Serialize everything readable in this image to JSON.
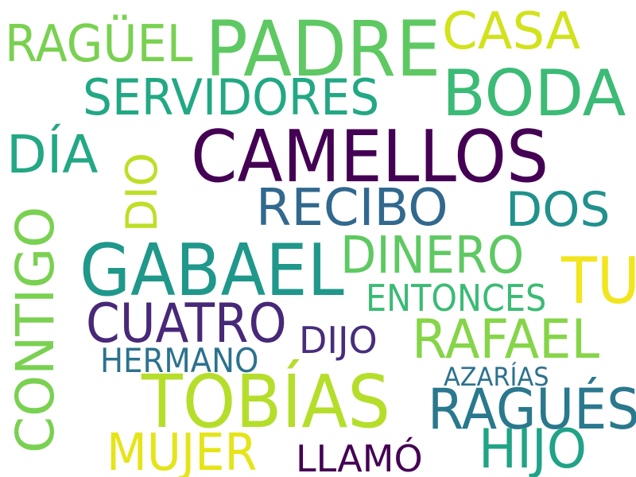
{
  "words": [
    {
      "text": "PADRE",
      "color": "#5ec962"
    },
    {
      "text": "CASA",
      "color": "#d2e21b"
    },
    {
      "text": "RAGÜEL",
      "color": "#7ad151"
    },
    {
      "text": "BODA",
      "color": "#3bbb75"
    },
    {
      "text": "SERVIDORES",
      "color": "#22a884"
    },
    {
      "text": "DÍA",
      "color": "#22a884"
    },
    {
      "text": "DIO",
      "color": "#bddf26"
    },
    {
      "text": "CAMELLOS",
      "color": "#440154"
    },
    {
      "text": "RECIBO",
      "color": "#31688e"
    },
    {
      "text": "DOS",
      "color": "#21918c"
    },
    {
      "text": "CONTIGO",
      "color": "#7ad151"
    },
    {
      "text": "GABAEL",
      "color": "#1f988b"
    },
    {
      "text": "DINERO",
      "color": "#5ec962"
    },
    {
      "text": "TU",
      "color": "#f1e51d"
    },
    {
      "text": "ENTONCES",
      "color": "#3bbb75"
    },
    {
      "text": "CUATRO",
      "color": "#482878"
    },
    {
      "text": "DIJO",
      "color": "#472d7b"
    },
    {
      "text": "RAFAEL",
      "color": "#86d549"
    },
    {
      "text": "HERMANO",
      "color": "#2c728e"
    },
    {
      "text": "AZARÍAS",
      "color": "#2c728e"
    },
    {
      "text": "TOBÍAS",
      "color": "#b5de2b"
    },
    {
      "text": "RAGUÉS",
      "color": "#2a788e"
    },
    {
      "text": "MUJER",
      "color": "#e5e419"
    },
    {
      "text": "LLAMÓ",
      "color": "#440154"
    },
    {
      "text": "HIJO",
      "color": "#20a386"
    }
  ]
}
